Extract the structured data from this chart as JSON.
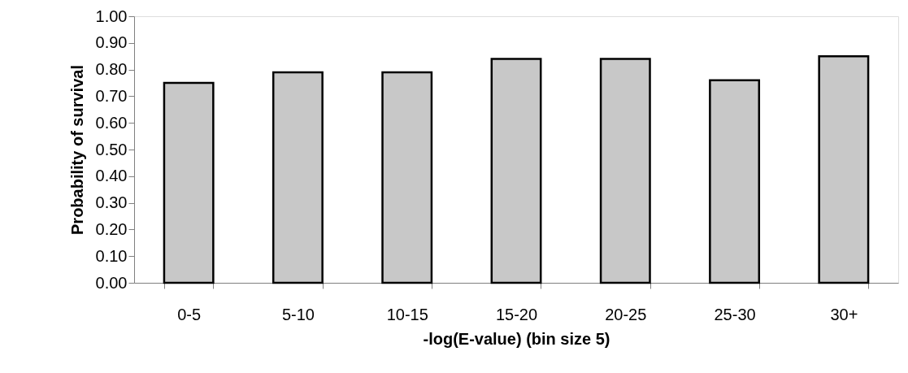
{
  "chart_data": {
    "type": "bar",
    "xlabel": "-log(E-value) (bin size 5)",
    "ylabel": "Probability of survival",
    "categories": [
      "0-5",
      "5-10",
      "10-15",
      "15-20",
      "20-25",
      "25-30",
      "30+"
    ],
    "values": [
      0.75,
      0.79,
      0.79,
      0.84,
      0.84,
      0.76,
      0.85
    ],
    "color": "#c8c8c8",
    "ylim": [
      0,
      1
    ],
    "yticks": [
      {
        "value": 0,
        "label": "0.00"
      },
      {
        "value": 0.1,
        "label": "0.10"
      },
      {
        "value": 0.2,
        "label": "0.20"
      },
      {
        "value": 0.3,
        "label": "0.30"
      },
      {
        "value": 0.4,
        "label": "0.40"
      },
      {
        "value": 0.5,
        "label": "0.50"
      },
      {
        "value": 0.6,
        "label": "0.60"
      },
      {
        "value": 0.7,
        "label": "0.70"
      },
      {
        "value": 0.8,
        "label": "0.80"
      },
      {
        "value": 0.9,
        "label": "0.90"
      },
      {
        "value": 1,
        "label": "1.00"
      }
    ],
    "grid": false
  }
}
